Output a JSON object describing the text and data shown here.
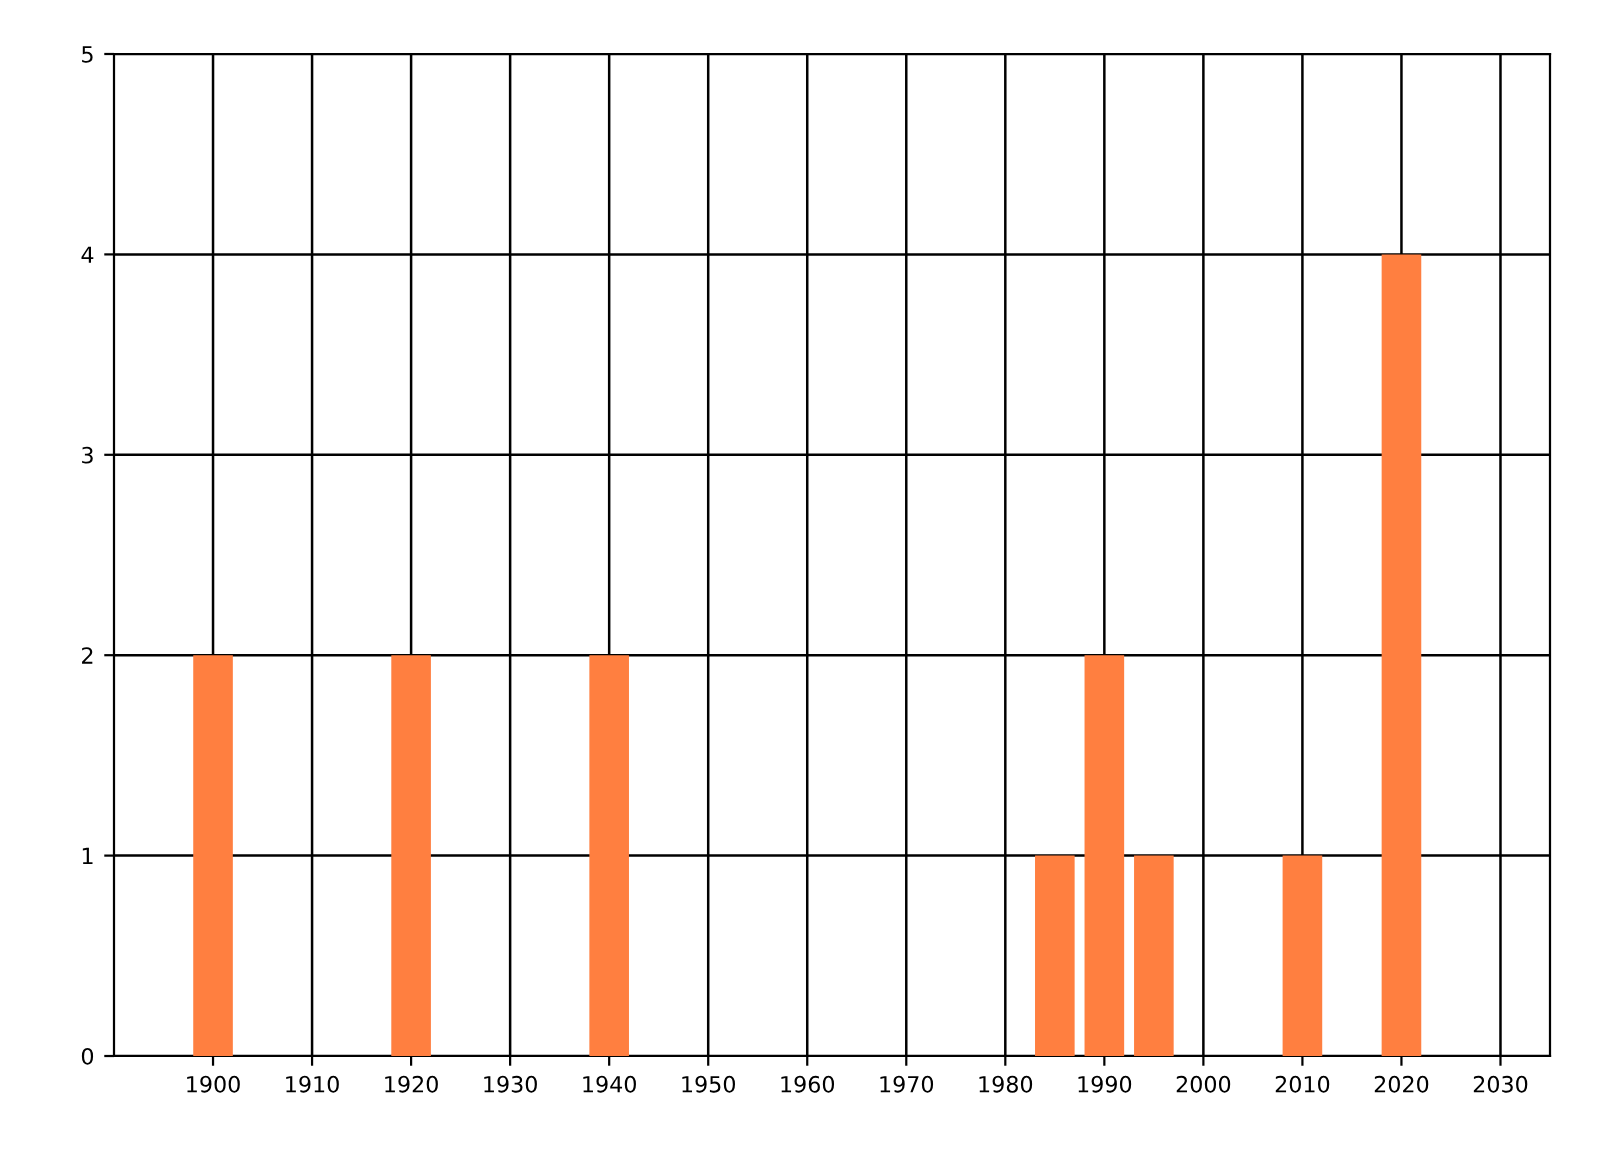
{
  "chart_data": {
    "type": "bar",
    "x": [
      1900,
      1920,
      1940,
      1985,
      1990,
      1995,
      2010,
      2020
    ],
    "values": [
      2,
      2,
      2,
      1,
      2,
      1,
      1,
      4
    ],
    "color": "#ff7f40",
    "xlim": [
      1890,
      2035
    ],
    "xticks": [
      1900,
      1910,
      1920,
      1930,
      1940,
      1950,
      1960,
      1970,
      1980,
      1990,
      2000,
      2010,
      2020,
      2030
    ],
    "ylim": [
      0,
      5
    ],
    "yticks": [
      0,
      1,
      2,
      3,
      4,
      5
    ],
    "grid": true
  }
}
